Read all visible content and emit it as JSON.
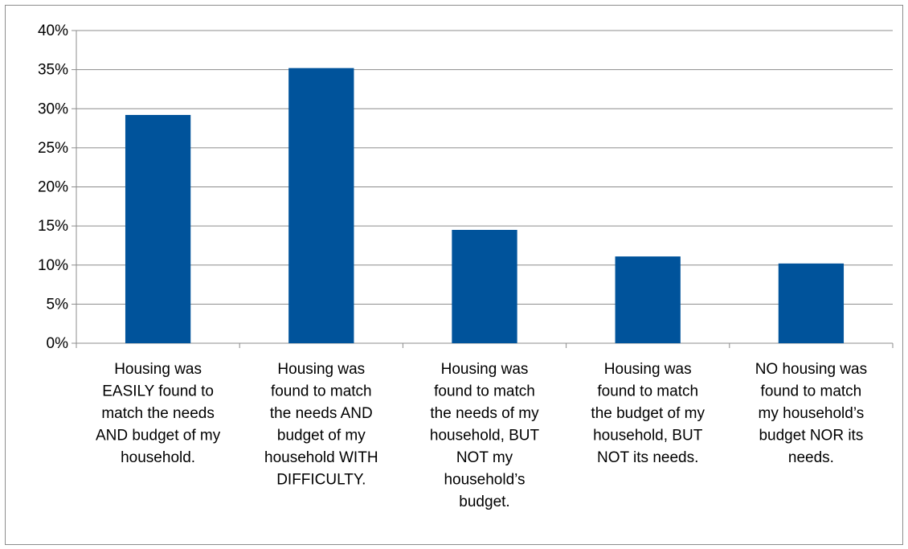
{
  "chart_data": {
    "type": "bar",
    "title": "",
    "xlabel": "",
    "ylabel": "",
    "ylim": [
      0,
      40
    ],
    "yticks": [
      0,
      5,
      10,
      15,
      20,
      25,
      30,
      35,
      40
    ],
    "y_tick_format": "percent",
    "grid": true,
    "legend": "none",
    "bar_color": "#00539B",
    "categories": [
      "Housing was EASILY found to match the needs AND budget of my household.",
      "Housing was found to match the needs AND budget of my household WITH DIFFICULTY.",
      "Housing was found to match the needs of my household, BUT NOT my household’s budget.",
      "Housing was found to match the budget of my household, BUT NOT its needs.",
      "NO housing was found to match my household’s budget NOR its needs."
    ],
    "category_label_lines": [
      [
        "Housing was",
        "EASILY found to",
        "match the needs",
        "AND budget of my",
        "household."
      ],
      [
        "Housing was",
        "found to match",
        "the needs AND",
        "budget of my",
        "household WITH",
        "DIFFICULTY."
      ],
      [
        "Housing was",
        "found to match",
        "the needs of my",
        "household, BUT",
        "NOT my",
        "household’s",
        "budget."
      ],
      [
        "Housing was",
        "found to match",
        "the budget of my",
        "household, BUT",
        "NOT its needs."
      ],
      [
        "NO housing was",
        "found to match",
        "my household’s",
        "budget NOR its",
        "needs."
      ]
    ],
    "values": [
      29.2,
      35.2,
      14.5,
      11.1,
      10.2
    ]
  }
}
